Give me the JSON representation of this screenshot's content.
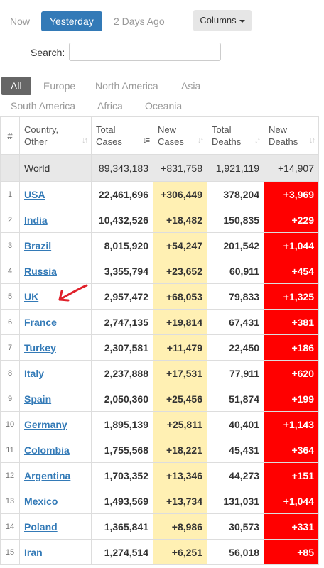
{
  "day_tabs": [
    "Now",
    "Yesterday",
    "2 Days Ago"
  ],
  "columns_button": "Columns",
  "search": {
    "label": "Search:",
    "value": ""
  },
  "continent_tabs": [
    "All",
    "Europe",
    "North America",
    "Asia",
    "South America",
    "Africa",
    "Oceania"
  ],
  "table": {
    "headers": {
      "rank": "#",
      "country_l1": "Country,",
      "country_l2": "Other",
      "total_cases_l1": "Total",
      "total_cases_l2": "Cases",
      "new_cases_l1": "New",
      "new_cases_l2": "Cases",
      "total_deaths_l1": "Total",
      "total_deaths_l2": "Deaths",
      "new_deaths_l1": "New",
      "new_deaths_l2": "Deaths"
    },
    "world": {
      "name": "World",
      "total_cases": "89,343,183",
      "new_cases": "+831,758",
      "total_deaths": "1,921,119",
      "new_deaths": "+14,907"
    },
    "rows": [
      {
        "rank": "1",
        "country": "USA",
        "total_cases": "22,461,696",
        "new_cases": "+306,449",
        "total_deaths": "378,204",
        "new_deaths": "+3,969"
      },
      {
        "rank": "2",
        "country": "India",
        "total_cases": "10,432,526",
        "new_cases": "+18,482",
        "total_deaths": "150,835",
        "new_deaths": "+229"
      },
      {
        "rank": "3",
        "country": "Brazil",
        "total_cases": "8,015,920",
        "new_cases": "+54,247",
        "total_deaths": "201,542",
        "new_deaths": "+1,044"
      },
      {
        "rank": "4",
        "country": "Russia",
        "total_cases": "3,355,794",
        "new_cases": "+23,652",
        "total_deaths": "60,911",
        "new_deaths": "+454"
      },
      {
        "rank": "5",
        "country": "UK",
        "total_cases": "2,957,472",
        "new_cases": "+68,053",
        "total_deaths": "79,833",
        "new_deaths": "+1,325"
      },
      {
        "rank": "6",
        "country": "France",
        "total_cases": "2,747,135",
        "new_cases": "+19,814",
        "total_deaths": "67,431",
        "new_deaths": "+381"
      },
      {
        "rank": "7",
        "country": "Turkey",
        "total_cases": "2,307,581",
        "new_cases": "+11,479",
        "total_deaths": "22,450",
        "new_deaths": "+186"
      },
      {
        "rank": "8",
        "country": "Italy",
        "total_cases": "2,237,888",
        "new_cases": "+17,531",
        "total_deaths": "77,911",
        "new_deaths": "+620"
      },
      {
        "rank": "9",
        "country": "Spain",
        "total_cases": "2,050,360",
        "new_cases": "+25,456",
        "total_deaths": "51,874",
        "new_deaths": "+199"
      },
      {
        "rank": "10",
        "country": "Germany",
        "total_cases": "1,895,139",
        "new_cases": "+25,811",
        "total_deaths": "40,401",
        "new_deaths": "+1,143"
      },
      {
        "rank": "11",
        "country": "Colombia",
        "total_cases": "1,755,568",
        "new_cases": "+18,221",
        "total_deaths": "45,431",
        "new_deaths": "+364"
      },
      {
        "rank": "12",
        "country": "Argentina",
        "total_cases": "1,703,352",
        "new_cases": "+13,346",
        "total_deaths": "44,273",
        "new_deaths": "+151"
      },
      {
        "rank": "13",
        "country": "Mexico",
        "total_cases": "1,493,569",
        "new_cases": "+13,734",
        "total_deaths": "131,031",
        "new_deaths": "+1,044"
      },
      {
        "rank": "14",
        "country": "Poland",
        "total_cases": "1,365,841",
        "new_cases": "+8,986",
        "total_deaths": "30,573",
        "new_deaths": "+331"
      },
      {
        "rank": "15",
        "country": "Iran",
        "total_cases": "1,274,514",
        "new_cases": "+6,251",
        "total_deaths": "56,018",
        "new_deaths": "+85"
      }
    ]
  },
  "colors": {
    "accent": "#337ab7",
    "new_cases_bg": "#fff0b3",
    "new_deaths_bg": "#ff0000",
    "annotation": "#e0202a"
  },
  "annotation_icon": "hand-drawn-arrow-icon"
}
